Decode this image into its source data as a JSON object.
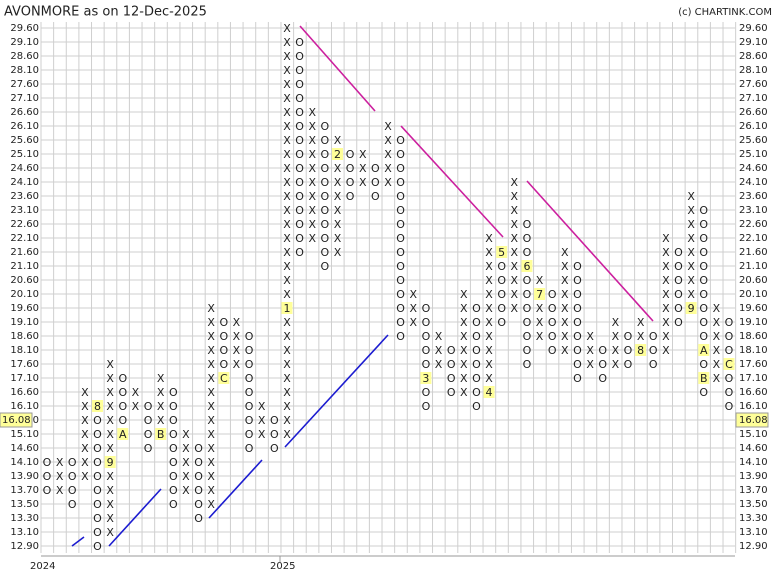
{
  "chart_data": {
    "type": "point_and_figure",
    "title": "AVONMORE as on 12-Dec-2025",
    "source": "(c) CHARTINK.COM",
    "x_color": "#2e8b2e",
    "o_color": "#e8343a",
    "marker_color": "#ffff99",
    "last_price": 16.08,
    "year_labels": [
      "2024",
      "2025"
    ],
    "levels": [
      {
        "value": 29.6,
        "label": "29.60"
      },
      {
        "value": 29.1,
        "label": "29.10"
      },
      {
        "value": 28.6,
        "label": "28.60"
      },
      {
        "value": 28.1,
        "label": "28.10"
      },
      {
        "value": 27.6,
        "label": "27.60"
      },
      {
        "value": 27.1,
        "label": "27.10"
      },
      {
        "value": 26.6,
        "label": "26.60"
      },
      {
        "value": 26.1,
        "label": "26.10"
      },
      {
        "value": 25.6,
        "label": "25.60"
      },
      {
        "value": 25.1,
        "label": "25.10"
      },
      {
        "value": 24.6,
        "label": "24.60"
      },
      {
        "value": 24.1,
        "label": "24.10"
      },
      {
        "value": 23.6,
        "label": "23.60"
      },
      {
        "value": 23.1,
        "label": "23.10"
      },
      {
        "value": 22.6,
        "label": "22.60"
      },
      {
        "value": 22.1,
        "label": "22.10"
      },
      {
        "value": 21.6,
        "label": "21.60"
      },
      {
        "value": 21.1,
        "label": "21.10"
      },
      {
        "value": 20.6,
        "label": "20.60"
      },
      {
        "value": 20.1,
        "label": "20.10"
      },
      {
        "value": 19.6,
        "label": "19.60"
      },
      {
        "value": 19.1,
        "label": "19.10"
      },
      {
        "value": 18.6,
        "label": "18.60"
      },
      {
        "value": 18.1,
        "label": "18.10"
      },
      {
        "value": 17.6,
        "label": "17.60"
      },
      {
        "value": 17.1,
        "label": "17.10"
      },
      {
        "value": 16.6,
        "label": "16.60"
      },
      {
        "value": 16.1,
        "label": "16.10"
      },
      {
        "value": 15.6,
        "label": "15.60"
      },
      {
        "value": 15.1,
        "label": "15.10"
      },
      {
        "value": 14.6,
        "label": "14.60"
      },
      {
        "value": 14.1,
        "label": "14.10"
      },
      {
        "value": 13.9,
        "label": "13.90"
      },
      {
        "value": 13.7,
        "label": "13.70"
      },
      {
        "value": 13.5,
        "label": "13.50"
      },
      {
        "value": 13.3,
        "label": "13.30"
      },
      {
        "value": 13.1,
        "label": "13.10"
      },
      {
        "value": 12.9,
        "label": "12.90"
      }
    ],
    "columns": [
      {
        "type": "O",
        "low": 13.7,
        "high": 14.1,
        "markers": []
      },
      {
        "type": "X",
        "low": 13.7,
        "high": 14.1,
        "markers": []
      },
      {
        "type": "O",
        "low": 13.5,
        "high": 14.1,
        "markers": []
      },
      {
        "type": "X",
        "low": 13.9,
        "high": 16.6,
        "markers": []
      },
      {
        "type": "O",
        "low": 12.9,
        "high": 16.1,
        "markers": [
          {
            "value": 16.1,
            "label": "8"
          }
        ]
      },
      {
        "type": "X",
        "low": 13.1,
        "high": 17.6,
        "markers": [
          {
            "value": 14.1,
            "label": "9"
          }
        ]
      },
      {
        "type": "O",
        "low": 15.1,
        "high": 17.1,
        "markers": [
          {
            "value": 15.1,
            "label": "A"
          }
        ]
      },
      {
        "type": "X",
        "low": 16.1,
        "high": 16.6,
        "markers": []
      },
      {
        "type": "O",
        "low": 14.6,
        "high": 16.1,
        "markers": []
      },
      {
        "type": "X",
        "low": 15.1,
        "high": 17.1,
        "markers": [
          {
            "value": 15.1,
            "label": "B"
          }
        ]
      },
      {
        "type": "O",
        "low": 13.5,
        "high": 16.6,
        "markers": []
      },
      {
        "type": "X",
        "low": 13.7,
        "high": 15.1,
        "markers": []
      },
      {
        "type": "O",
        "low": 13.3,
        "high": 14.6,
        "markers": []
      },
      {
        "type": "X",
        "low": 13.5,
        "high": 19.6,
        "markers": []
      },
      {
        "type": "O",
        "low": 17.1,
        "high": 19.1,
        "markers": [
          {
            "value": 17.1,
            "label": "C"
          }
        ]
      },
      {
        "type": "X",
        "low": 17.6,
        "high": 19.1,
        "markers": []
      },
      {
        "type": "O",
        "low": 14.6,
        "high": 18.6,
        "markers": []
      },
      {
        "type": "X",
        "low": 15.1,
        "high": 16.1,
        "markers": []
      },
      {
        "type": "O",
        "low": 14.6,
        "high": 15.6,
        "markers": []
      },
      {
        "type": "X",
        "low": 15.1,
        "high": 29.6,
        "markers": [
          {
            "value": 19.6,
            "label": "1"
          }
        ]
      },
      {
        "type": "O",
        "low": 21.6,
        "high": 29.1,
        "markers": []
      },
      {
        "type": "X",
        "low": 22.1,
        "high": 26.6,
        "markers": []
      },
      {
        "type": "O",
        "low": 21.1,
        "high": 26.1,
        "markers": []
      },
      {
        "type": "X",
        "low": 21.6,
        "high": 25.6,
        "markers": [
          {
            "value": 25.1,
            "label": "2"
          }
        ]
      },
      {
        "type": "O",
        "low": 23.6,
        "high": 25.1,
        "markers": []
      },
      {
        "type": "X",
        "low": 24.1,
        "high": 25.1,
        "markers": []
      },
      {
        "type": "O",
        "low": 23.6,
        "high": 24.6,
        "markers": []
      },
      {
        "type": "X",
        "low": 24.1,
        "high": 26.1,
        "markers": []
      },
      {
        "type": "O",
        "low": 18.6,
        "high": 25.6,
        "markers": []
      },
      {
        "type": "X",
        "low": 19.1,
        "high": 20.1,
        "markers": []
      },
      {
        "type": "O",
        "low": 16.1,
        "high": 19.6,
        "markers": [
          {
            "value": 17.1,
            "label": "3"
          }
        ]
      },
      {
        "type": "X",
        "low": 17.6,
        "high": 18.6,
        "markers": []
      },
      {
        "type": "O",
        "low": 16.6,
        "high": 18.1,
        "markers": []
      },
      {
        "type": "X",
        "low": 16.6,
        "high": 20.1,
        "markers": []
      },
      {
        "type": "O",
        "low": 16.1,
        "high": 19.6,
        "markers": []
      },
      {
        "type": "X",
        "low": 16.6,
        "high": 22.1,
        "markers": [
          {
            "value": 16.6,
            "label": "4"
          }
        ]
      },
      {
        "type": "O",
        "low": 19.1,
        "high": 21.6,
        "markers": [
          {
            "value": 21.6,
            "label": "5"
          }
        ]
      },
      {
        "type": "X",
        "low": 19.6,
        "high": 24.1,
        "markers": []
      },
      {
        "type": "O",
        "low": 17.6,
        "high": 22.6,
        "markers": [
          {
            "value": 21.1,
            "label": "6"
          }
        ]
      },
      {
        "type": "X",
        "low": 18.6,
        "high": 20.6,
        "markers": [
          {
            "value": 20.1,
            "label": "7"
          }
        ]
      },
      {
        "type": "O",
        "low": 18.1,
        "high": 20.1,
        "markers": []
      },
      {
        "type": "X",
        "low": 18.1,
        "high": 21.6,
        "markers": []
      },
      {
        "type": "O",
        "low": 17.1,
        "high": 21.1,
        "markers": []
      },
      {
        "type": "X",
        "low": 17.6,
        "high": 18.6,
        "markers": []
      },
      {
        "type": "O",
        "low": 17.1,
        "high": 18.1,
        "markers": []
      },
      {
        "type": "X",
        "low": 17.6,
        "high": 19.1,
        "markers": []
      },
      {
        "type": "O",
        "low": 17.6,
        "high": 18.6,
        "markers": []
      },
      {
        "type": "X",
        "low": 18.1,
        "high": 19.1,
        "markers": [
          {
            "value": 18.1,
            "label": "8"
          }
        ]
      },
      {
        "type": "O",
        "low": 17.6,
        "high": 18.6,
        "markers": []
      },
      {
        "type": "X",
        "low": 18.1,
        "high": 22.1,
        "markers": []
      },
      {
        "type": "O",
        "low": 19.1,
        "high": 21.6,
        "markers": []
      },
      {
        "type": "X",
        "low": 19.6,
        "high": 23.6,
        "markers": [
          {
            "value": 19.6,
            "label": "9"
          }
        ]
      },
      {
        "type": "O",
        "low": 16.6,
        "high": 23.1,
        "markers": [
          {
            "value": 18.1,
            "label": "A"
          },
          {
            "value": 17.1,
            "label": "B"
          }
        ]
      },
      {
        "type": "X",
        "low": 17.1,
        "high": 19.6,
        "markers": []
      },
      {
        "type": "O",
        "low": 16.1,
        "high": 19.1,
        "markers": [
          {
            "value": 17.6,
            "label": "C"
          }
        ]
      }
    ]
  }
}
